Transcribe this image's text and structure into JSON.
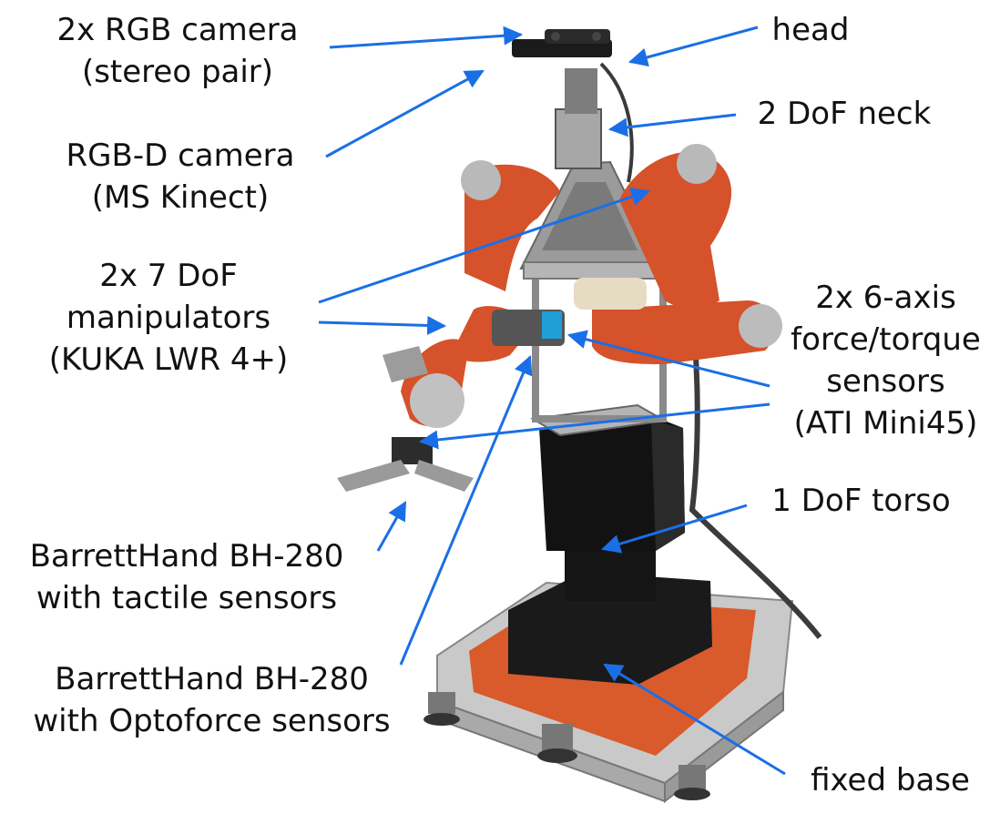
{
  "colors": {
    "arrow": "#1a6fe6",
    "robot_arm": "#d5522a",
    "robot_metal": "#b8b8b8",
    "robot_black": "#141414",
    "base_plate": "#c9c9c9",
    "base_orange": "#d95a2b"
  },
  "labels": {
    "rgb_camera": [
      "2x RGB camera",
      "(stereo pair)"
    ],
    "rgbd_camera": [
      "RGB-D camera",
      "(MS Kinect)"
    ],
    "manipulators": [
      "2x 7 DoF",
      "manipulators",
      "(KUKA LWR 4+)"
    ],
    "hand_tactile": [
      "BarrettHand BH-280",
      "with tactile sensors"
    ],
    "hand_optoforce": [
      "BarrettHand BH-280",
      "with Optoforce sensors"
    ],
    "head": [
      "head"
    ],
    "neck": [
      "2 DoF neck"
    ],
    "ft_sensors": [
      "2x 6-axis",
      "force/torque",
      "sensors",
      "(ATI Mini45)"
    ],
    "torso": [
      "1 DoF torso"
    ],
    "base": [
      "fixed base"
    ]
  }
}
